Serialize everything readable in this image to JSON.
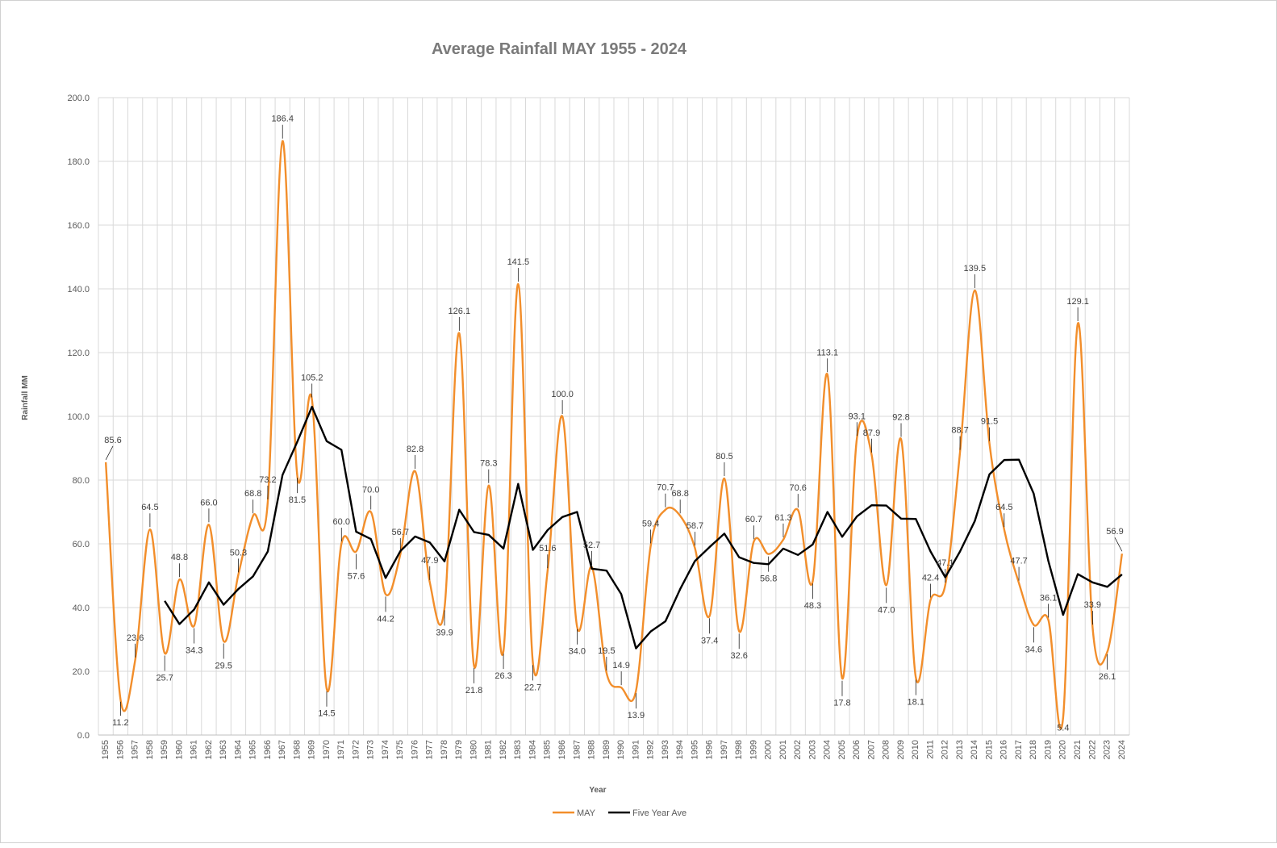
{
  "chart_data": {
    "type": "line",
    "title": "Average Rainfall MAY 1955 - 2024",
    "xlabel": "Year",
    "ylabel": "Rainfall MM",
    "ylim": [
      0,
      200
    ],
    "ytick_step": 20,
    "yticks": [
      "0.0",
      "20.0",
      "40.0",
      "60.0",
      "80.0",
      "100.0",
      "120.0",
      "140.0",
      "160.0",
      "180.0",
      "200.0"
    ],
    "grid": true,
    "legend": "bottom",
    "x": [
      "1955",
      "1956",
      "1957",
      "1958",
      "1959",
      "1960",
      "1961",
      "1962",
      "1963",
      "1964",
      "1965",
      "1966",
      "1967",
      "1968",
      "1969",
      "1970",
      "1971",
      "1972",
      "1973",
      "1974",
      "1975",
      "1976",
      "1977",
      "1978",
      "1979",
      "1980",
      "1981",
      "1982",
      "1983",
      "1984",
      "1985",
      "1986",
      "1987",
      "1988",
      "1989",
      "1990",
      "1991",
      "1992",
      "1993",
      "1994",
      "1995",
      "1996",
      "1997",
      "1998",
      "1999",
      "2000",
      "2001",
      "2002",
      "2003",
      "2004",
      "2005",
      "2006",
      "2007",
      "2008",
      "2009",
      "2010",
      "2011",
      "2012",
      "2013",
      "2014",
      "2015",
      "2016",
      "2017",
      "2018",
      "2019",
      "2020",
      "2021",
      "2022",
      "2023",
      "2024"
    ],
    "series": [
      {
        "name": "MAY",
        "color": "#F28E2B",
        "smooth": true,
        "values": [
          85.6,
          11.2,
          23.6,
          64.5,
          25.7,
          48.8,
          34.3,
          66.0,
          29.5,
          50.3,
          68.8,
          73.2,
          186.4,
          81.5,
          105.2,
          14.5,
          60.0,
          57.6,
          70.0,
          44.2,
          56.7,
          82.8,
          47.9,
          39.9,
          126.1,
          21.8,
          78.3,
          26.3,
          141.5,
          22.7,
          51.6,
          100.0,
          34.0,
          52.7,
          19.5,
          14.9,
          13.9,
          59.4,
          70.7,
          68.8,
          58.7,
          37.4,
          80.5,
          32.6,
          60.7,
          56.8,
          61.3,
          70.6,
          48.3,
          113.1,
          17.8,
          93.1,
          87.9,
          47.0,
          92.8,
          18.1,
          42.4,
          47.1,
          88.7,
          139.5,
          91.5,
          64.5,
          47.7,
          34.6,
          36.1,
          5.4,
          129.1,
          33.9,
          26.1,
          56.9
        ],
        "labels": [
          "85.6",
          "11.2",
          "23.6",
          "64.5",
          "25.7",
          "48.8",
          "34.3",
          "66.0",
          "29.5",
          "50.3",
          "68.8",
          "73.2",
          "186.4",
          "81.5",
          "105.2",
          "14.5",
          "60.0",
          "57.6",
          "70.0",
          "44.2",
          "56.7",
          "82.8",
          "47.9",
          "39.9",
          "126.1",
          "21.8",
          "78.3",
          "26.3",
          "141.5",
          "22.7",
          "51.6",
          "100.0",
          "34.0",
          "52.7",
          "19.5",
          "14.9",
          "13.9",
          "59.4",
          "70.7",
          "68.8",
          "58.7",
          "37.4",
          "80.5",
          "32.6",
          "60.7",
          "56.8",
          "61.3",
          "70.6",
          "48.3",
          "113.1",
          "17.8",
          "93.1",
          "87.9",
          "47.0",
          "92.8",
          "18.1",
          "42.4",
          "47.1",
          "88.7",
          "139.5",
          "91.5",
          "64.5",
          "47.7",
          "34.6",
          "36.1",
          "5.4",
          "129.1",
          "33.9",
          "26.1",
          "56.9"
        ]
      },
      {
        "name": "Five Year Ave",
        "color": "#000000",
        "smooth": false,
        "values": [
          null,
          null,
          null,
          null,
          42.1,
          34.8,
          39.4,
          47.9,
          40.9,
          45.8,
          49.8,
          57.6,
          81.6,
          92.0,
          103.0,
          92.2,
          89.5,
          63.8,
          61.5,
          49.3,
          57.7,
          62.3,
          60.4,
          54.5,
          70.7,
          63.7,
          62.8,
          58.5,
          78.8,
          58.1,
          64.3,
          68.4,
          70.0,
          52.2,
          51.6,
          44.2,
          27.2,
          32.5,
          35.7,
          45.8,
          54.6,
          59.0,
          63.2,
          55.8,
          54.0,
          53.6,
          58.5,
          56.5,
          59.8,
          70.0,
          62.2,
          68.6,
          72.1,
          72.0,
          67.9,
          67.8,
          57.6,
          49.5,
          57.6,
          67.1,
          81.8,
          86.3,
          86.4,
          75.8,
          54.6,
          37.7,
          50.5,
          47.9,
          46.5,
          50.4
        ]
      }
    ]
  }
}
